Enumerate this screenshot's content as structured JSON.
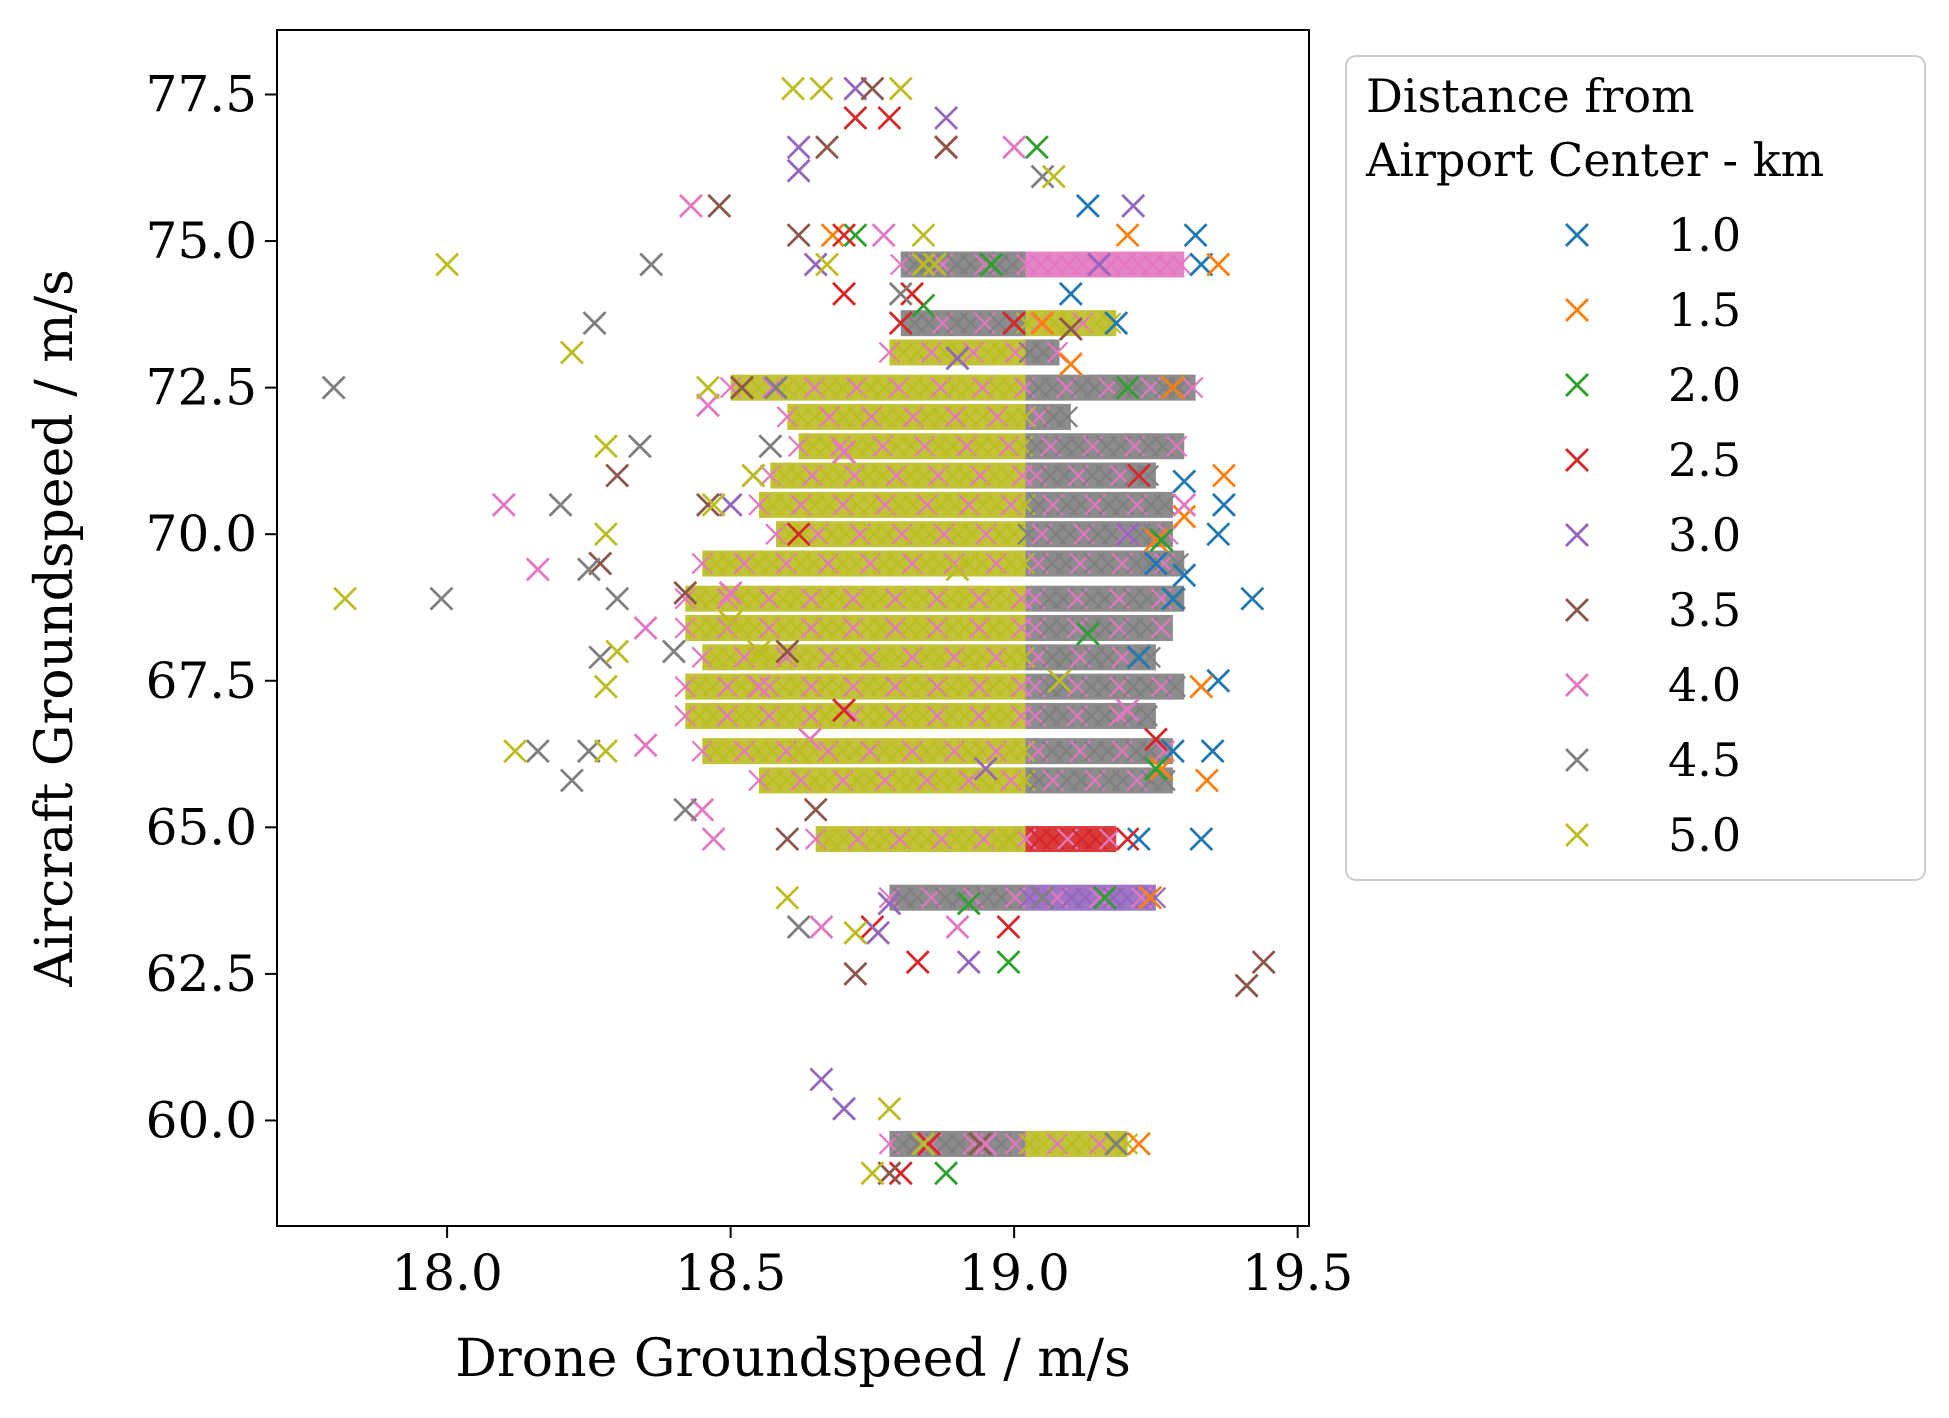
{
  "chart_data": {
    "type": "scatter",
    "xlabel": "Drone Groundspeed / m/s",
    "ylabel": "Aircraft Groundspeed / m/s",
    "xlim": [
      17.7,
      19.52
    ],
    "ylim": [
      58.2,
      78.6
    ],
    "xticks": [
      "18.0",
      "18.5",
      "19.0",
      "19.5"
    ],
    "yticks": [
      "60.0",
      "62.5",
      "65.0",
      "67.5",
      "70.0",
      "72.5",
      "75.0",
      "77.5"
    ],
    "marker": "x",
    "grid": false,
    "legend": {
      "title_line1": "Distance from",
      "title_line2": "Airport Center - km",
      "placement": "outside-top-right"
    },
    "series": [
      {
        "name": "1.0",
        "color": "#1f77b4",
        "points": [
          [
            19.42,
            68.9
          ],
          [
            19.37,
            70.5
          ],
          [
            19.36,
            70.0
          ],
          [
            19.36,
            67.5
          ],
          [
            19.35,
            66.3
          ],
          [
            19.33,
            64.8
          ],
          [
            19.32,
            75.1
          ],
          [
            19.33,
            74.6
          ],
          [
            19.3,
            70.9
          ],
          [
            19.3,
            69.3
          ],
          [
            19.28,
            68.9
          ],
          [
            19.25,
            69.5
          ],
          [
            19.22,
            64.8
          ],
          [
            19.18,
            73.6
          ],
          [
            19.13,
            75.6
          ],
          [
            19.1,
            74.1
          ],
          [
            19.22,
            67.9
          ],
          [
            19.28,
            66.3
          ]
        ]
      },
      {
        "name": "1.5",
        "color": "#ff7f0e",
        "points": [
          [
            19.37,
            71.0
          ],
          [
            19.36,
            74.6
          ],
          [
            19.34,
            65.8
          ],
          [
            19.33,
            67.4
          ],
          [
            19.3,
            70.3
          ],
          [
            19.22,
            59.6
          ],
          [
            19.24,
            63.8
          ],
          [
            19.28,
            72.5
          ],
          [
            19.26,
            66.0
          ],
          [
            19.2,
            75.1
          ],
          [
            19.05,
            73.6
          ],
          [
            18.68,
            75.1
          ],
          [
            19.1,
            72.9
          ],
          [
            19.25,
            69.9
          ]
        ]
      },
      {
        "name": "2.0",
        "color": "#2ca02c",
        "points": [
          [
            19.04,
            76.6
          ],
          [
            18.96,
            74.6
          ],
          [
            18.84,
            73.9
          ],
          [
            18.72,
            75.1
          ],
          [
            18.92,
            63.7
          ],
          [
            18.99,
            62.7
          ],
          [
            18.88,
            59.1
          ],
          [
            19.16,
            63.8
          ],
          [
            19.26,
            69.9
          ],
          [
            19.25,
            66.0
          ],
          [
            19.2,
            72.5
          ],
          [
            18.9,
            73.0
          ],
          [
            19.13,
            68.3
          ]
        ]
      },
      {
        "name": "2.5",
        "color": "#d62728",
        "points": [
          [
            18.78,
            77.1
          ],
          [
            18.72,
            77.1
          ],
          [
            18.75,
            63.3
          ],
          [
            18.83,
            62.7
          ],
          [
            18.99,
            63.3
          ],
          [
            18.8,
            59.1
          ],
          [
            18.8,
            73.6
          ],
          [
            18.88,
            76.6
          ],
          [
            18.7,
            74.1
          ],
          [
            18.7,
            75.1
          ],
          [
            18.82,
            74.1
          ],
          [
            18.85,
            59.6
          ],
          [
            19.25,
            66.5
          ],
          [
            19.22,
            71.0
          ],
          [
            19.2,
            64.8
          ],
          [
            18.62,
            70.0
          ],
          [
            18.7,
            67.0
          ],
          [
            19.0,
            73.6
          ]
        ]
      },
      {
        "name": "3.0",
        "color": "#9467bd",
        "points": [
          [
            18.62,
            76.2
          ],
          [
            18.62,
            76.6
          ],
          [
            18.72,
            77.6
          ],
          [
            18.66,
            60.7
          ],
          [
            18.7,
            60.2
          ],
          [
            18.78,
            63.7
          ],
          [
            18.92,
            62.7
          ],
          [
            18.88,
            77.1
          ],
          [
            18.65,
            74.6
          ],
          [
            19.21,
            75.6
          ],
          [
            19.15,
            74.6
          ],
          [
            18.76,
            63.2
          ],
          [
            18.95,
            66.0
          ],
          [
            18.5,
            70.5
          ],
          [
            19.2,
            70.0
          ],
          [
            18.9,
            73.0
          ]
        ]
      },
      {
        "name": "3.5",
        "color": "#8c564b",
        "points": [
          [
            18.67,
            76.6
          ],
          [
            18.48,
            75.6
          ],
          [
            18.62,
            75.1
          ],
          [
            18.3,
            71.0
          ],
          [
            18.27,
            69.5
          ],
          [
            18.65,
            65.3
          ],
          [
            18.72,
            62.5
          ],
          [
            19.44,
            62.7
          ],
          [
            19.41,
            62.3
          ],
          [
            18.78,
            59.1
          ],
          [
            18.75,
            77.6
          ],
          [
            18.94,
            59.6
          ],
          [
            18.88,
            76.6
          ],
          [
            18.52,
            72.5
          ],
          [
            18.46,
            70.5
          ],
          [
            18.42,
            69.0
          ],
          [
            18.6,
            68.0
          ],
          [
            19.1,
            73.5
          ],
          [
            18.6,
            64.8
          ]
        ]
      },
      {
        "name": "4.0",
        "color": "#e377c2",
        "points": [
          [
            18.43,
            75.6
          ],
          [
            18.1,
            70.5
          ],
          [
            18.16,
            69.4
          ],
          [
            18.46,
            72.2
          ],
          [
            18.35,
            66.4
          ],
          [
            18.47,
            64.8
          ],
          [
            18.77,
            75.1
          ],
          [
            18.64,
            66.5
          ],
          [
            18.9,
            63.3
          ],
          [
            19.0,
            76.6
          ],
          [
            18.95,
            59.6
          ],
          [
            18.35,
            68.4
          ],
          [
            18.54,
            71.0
          ],
          [
            18.5,
            69.0
          ],
          [
            18.55,
            67.4
          ],
          [
            19.2,
            67.0
          ],
          [
            18.7,
            71.4
          ],
          [
            19.3,
            70.5
          ],
          [
            18.45,
            65.3
          ],
          [
            18.66,
            63.3
          ]
        ]
      },
      {
        "name": "4.5",
        "color": "#7f7f7f",
        "points": [
          [
            17.8,
            72.5
          ],
          [
            17.99,
            68.9
          ],
          [
            18.2,
            70.5
          ],
          [
            18.16,
            66.3
          ],
          [
            18.22,
            65.8
          ],
          [
            18.26,
            73.6
          ],
          [
            18.36,
            74.6
          ],
          [
            18.34,
            71.5
          ],
          [
            18.25,
            66.3
          ],
          [
            18.27,
            67.9
          ],
          [
            18.25,
            69.4
          ],
          [
            18.3,
            68.9
          ],
          [
            18.42,
            65.3
          ],
          [
            18.57,
            71.5
          ],
          [
            18.62,
            63.3
          ],
          [
            19.05,
            76.1
          ],
          [
            18.8,
            74.1
          ],
          [
            19.18,
            59.6
          ],
          [
            19.05,
            63.8
          ],
          [
            18.58,
            72.5
          ],
          [
            18.4,
            68.0
          ]
        ]
      },
      {
        "name": "5.0",
        "color": "#bcbd22",
        "points": [
          [
            17.82,
            68.9
          ],
          [
            18.0,
            74.6
          ],
          [
            18.22,
            73.1
          ],
          [
            18.12,
            66.3
          ],
          [
            18.28,
            70.0
          ],
          [
            18.28,
            66.3
          ],
          [
            18.3,
            68.0
          ],
          [
            18.28,
            67.4
          ],
          [
            18.28,
            71.5
          ],
          [
            18.61,
            77.6
          ],
          [
            18.66,
            77.6
          ],
          [
            18.8,
            77.6
          ],
          [
            18.84,
            75.1
          ],
          [
            18.67,
            74.6
          ],
          [
            18.6,
            63.8
          ],
          [
            18.75,
            59.1
          ],
          [
            18.84,
            59.6
          ],
          [
            18.46,
            72.5
          ],
          [
            18.54,
            71.0
          ],
          [
            18.47,
            70.5
          ],
          [
            18.5,
            68.5
          ],
          [
            18.55,
            68.0
          ],
          [
            18.62,
            66.3
          ],
          [
            18.72,
            63.2
          ],
          [
            18.78,
            60.2
          ],
          [
            19.07,
            76.1
          ],
          [
            18.9,
            69.4
          ],
          [
            18.99,
            64.8
          ],
          [
            18.84,
            74.6
          ],
          [
            19.08,
            67.5
          ],
          [
            18.86,
            74.6
          ]
        ]
      }
    ]
  }
}
